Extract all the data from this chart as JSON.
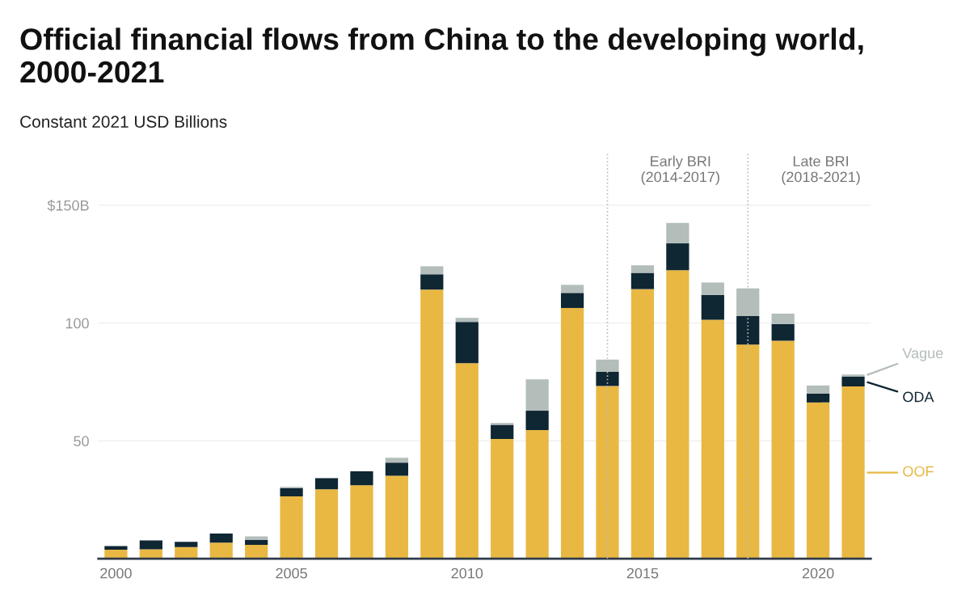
{
  "chart_data": {
    "type": "bar",
    "stacked": true,
    "title": "Official financial flows from China to the developing world, 2000-2021",
    "subtitle": "Constant 2021 USD Billions",
    "x": [
      2000,
      2001,
      2002,
      2003,
      2004,
      2005,
      2006,
      2007,
      2008,
      2009,
      2010,
      2011,
      2012,
      2013,
      2014,
      2015,
      2016,
      2017,
      2018,
      2019,
      2020,
      2021
    ],
    "series": [
      {
        "name": "OOF",
        "color": "#e8b843",
        "values": [
          3.8,
          4.0,
          4.9,
          6.8,
          5.9,
          26.5,
          29.5,
          31.2,
          35.2,
          114.2,
          83.0,
          50.8,
          54.6,
          106.4,
          73.3,
          114.4,
          122.4,
          101.4,
          90.9,
          92.5,
          66.3,
          73.1
        ]
      },
      {
        "name": "ODA",
        "color": "#0f2633",
        "values": [
          1.6,
          3.8,
          2.3,
          3.9,
          2.1,
          3.4,
          4.7,
          5.9,
          5.6,
          6.5,
          17.5,
          6.0,
          8.2,
          6.4,
          6.0,
          6.9,
          11.4,
          10.5,
          12.1,
          7.1,
          3.8,
          4.1
        ]
      },
      {
        "name": "Vague",
        "color": "#b3bdba",
        "values": [
          null,
          null,
          null,
          null,
          1.5,
          0.6,
          null,
          null,
          2.0,
          3.4,
          1.7,
          0.8,
          13.3,
          3.4,
          5.2,
          3.2,
          8.7,
          5.3,
          11.7,
          4.4,
          3.4,
          1.0
        ]
      }
    ],
    "xlim": [
      1999.5,
      2021.5
    ],
    "xticks": [
      2000,
      2005,
      2010,
      2015,
      2020
    ],
    "ylim": [
      0,
      172
    ],
    "yticks": [
      50,
      100,
      {
        "value": 150,
        "label": "$150B"
      }
    ],
    "grid": "y",
    "legend": "right",
    "ref_lines": [
      {
        "axis": "x",
        "value": 2014,
        "label": "Early BRI\n(2014-2017)",
        "color": "#bbbbbb",
        "line_style": "dotted"
      },
      {
        "axis": "x",
        "value": 2018,
        "label": "Late BRI\n(2018-2021)",
        "color": "#bbbbbb",
        "line_style": "dotted"
      }
    ]
  }
}
